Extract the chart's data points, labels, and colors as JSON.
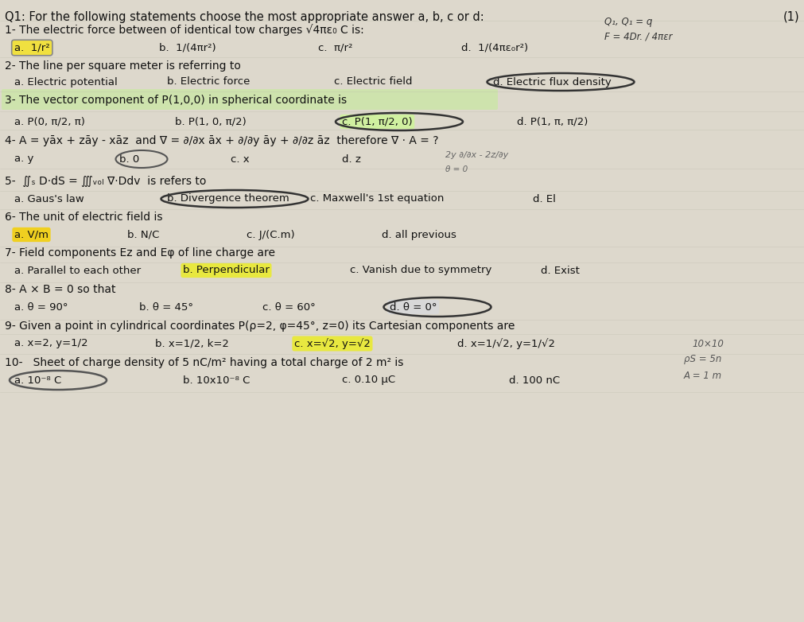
{
  "bg_color": "#ddd8cc",
  "title_line1": "Q1: For the following statements choose the most appropriate answer a, b, c or d:",
  "title_right": "(1)",
  "q1_line": "1- The electric force between of identical tow charges √4πε₀ C is:",
  "q1_opts": [
    "a.  1/r²",
    "b.  1/(4πr²)",
    "c.  π/r²",
    "d.  1/(4πε₀r²)"
  ],
  "q1_hl": 0,
  "q1_right": [
    "Q₁, Q₁ = q",
    "F = 4Dr. / 4πεr"
  ],
  "q2_line": "2- The line per square meter is referring to",
  "q2_opts": [
    "a. Electric potential",
    "b. Electric force",
    "c. Electric field",
    "d. Electric flux density"
  ],
  "q2_hl": 3,
  "q3_line": "3- The vector component of P(1,0,0) in spherical coordinate is",
  "q3_hl_line": true,
  "q3_opts": [
    "a. P(0, π/2, π)",
    "b. P(1, 0, π/2)",
    "c. P(1, π/2, 0)",
    "d. P(1, π, π/2)"
  ],
  "q3_hl": 2,
  "q4_line": "4- A = yāx + zāy - xāz  and ∇ = ∂/∂x āx + ∂/∂y āy + ∂/∂z āz  therefore ∇ · A = ?",
  "q4_opts": [
    "a. y",
    "b. 0",
    "c. x",
    "d. z"
  ],
  "q4_hl": 1,
  "q4_right": [
    "2y ∂/∂x - 2z/∂y"
  ],
  "q5_line": "5-  ∬ₛ D·dS = ∭ᵥₒₗ ∇·Ddv  is refers to",
  "q5_opts": [
    "a. Gaus's law",
    "b. Divergence theorem",
    "c. Maxwell's 1st equation",
    "d. El"
  ],
  "q5_hl": 1,
  "q6_line": "6- The unit of electric field is",
  "q6_opts": [
    "a. V/m",
    "b. N/C",
    "c. J/(C.m)",
    "d. all previous"
  ],
  "q6_hl": 0,
  "q7_line": "7- Field components Ez and Eφ of line charge are",
  "q7_opts": [
    "a. Parallel to each other",
    "b. Perpendicular",
    "c. Vanish due to symmetry",
    "d. Exist"
  ],
  "q7_hl": 1,
  "q8_line": "8- A × B = 0 so that",
  "q8_opts": [
    "a. θ = 90°",
    "b. θ = 45°",
    "c. θ = 60°",
    "d. θ = 0°"
  ],
  "q8_hl": 3,
  "q9_line": "9- Given a point in cylindrical coordinates P(ρ=2, φ=45°, z=0) its Cartesian components are",
  "q9_opts": [
    "a. x=2, y=1/2",
    "b. x=1/2, k=2",
    "c. x=√2, y=√2",
    "d. x=1/√2, y=1/√2"
  ],
  "q9_hl": 2,
  "q9_right": "10×10",
  "q10_line": "10-   Sheet of charge density of 5 nC/m² having a total charge of 2 m² is",
  "q10_opts": [
    "a. 10⁻⁸ C",
    "b. 10x10⁻⁸ C",
    "c. 0.10 μC",
    "d. 100 nC"
  ],
  "q10_hl": 0,
  "q10_right": [
    "ρS = 5n",
    "A = 1 m"
  ]
}
